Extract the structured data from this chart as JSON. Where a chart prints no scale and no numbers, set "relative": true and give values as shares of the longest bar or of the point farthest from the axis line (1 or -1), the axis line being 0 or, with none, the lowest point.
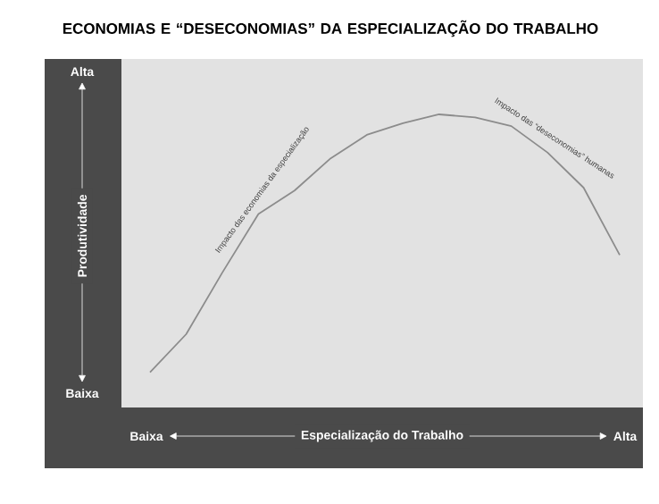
{
  "chart_data": {
    "type": "line",
    "title": "ECONOMIAS E “DESECONOMIAS” DA ESPECIALIZAÇÃO DO TRABALHO",
    "xlabel": "Especialização do Trabalho",
    "ylabel": "Produtividade",
    "relative": true,
    "marker": "none",
    "categories": [
      null,
      null,
      null,
      null,
      null,
      null,
      null,
      null,
      null,
      null,
      null,
      null,
      null,
      null
    ],
    "series": [
      {
        "color": "#8c8c8c",
        "values": [
          0.12,
          0.25,
          0.46,
          0.66,
          0.74,
          0.85,
          0.93,
          0.97,
          1.0,
          0.99,
          0.96,
          0.87,
          0.75,
          0.52
        ]
      }
    ],
    "annotations": [
      "Alta",
      "Baixa",
      "Baixa",
      "Alta",
      "Impacto das economias da especialização",
      "Impacto das “deseconomias” humanas"
    ]
  }
}
